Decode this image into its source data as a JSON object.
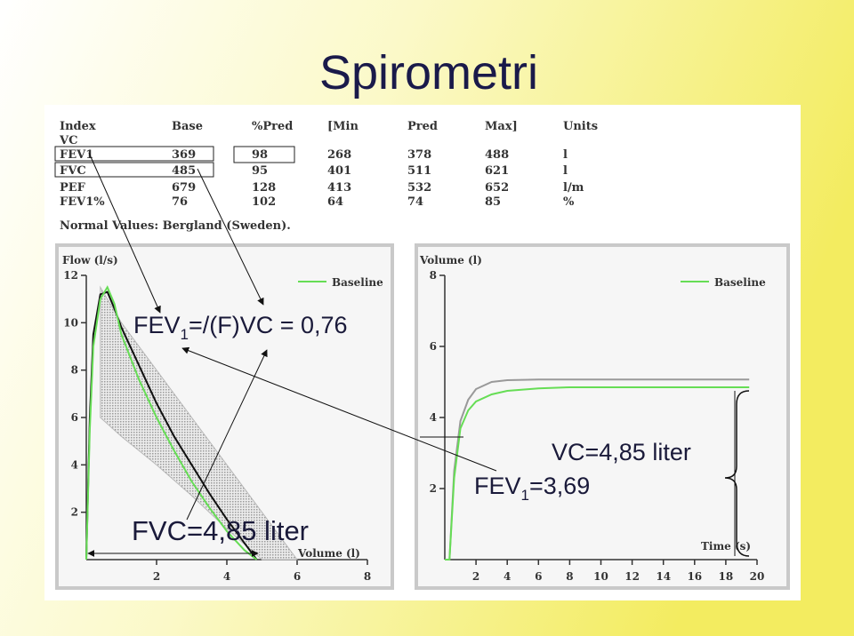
{
  "title": "Spirometri",
  "table": {
    "header": [
      "Index",
      "Base",
      "%Pred",
      "[Min",
      "Pred",
      "Max]",
      "Units"
    ],
    "rows": [
      [
        "VC"
      ],
      [
        "FEV1",
        "369",
        "98",
        "268",
        "378",
        "488",
        "l"
      ],
      [
        "FVC",
        "485",
        "95",
        "401",
        "511",
        "621",
        "l"
      ],
      [
        "PEF",
        "679",
        "128",
        "413",
        "532",
        "652",
        "l/m"
      ],
      [
        "FEV1%",
        "76",
        "102",
        "64",
        "74",
        "85",
        "%"
      ]
    ],
    "note": "Normal Values: Bergland (Sweden)."
  },
  "annotations": [
    {
      "main": "FEV",
      "sub": "1",
      "rest": "=/(F)VC = 0,76"
    },
    {
      "main": "FVC=4,85 liter"
    },
    {
      "main": "VC=4,85 liter"
    },
    {
      "main": "FEV",
      "sub": "1",
      "rest": "=3,69"
    }
  ],
  "chart_data": [
    {
      "type": "line",
      "y_label": "Flow (l/s)",
      "x_label": "Volume (l)",
      "x": [
        0,
        0.1,
        0.2,
        0.4,
        0.6,
        0.8,
        1,
        1.5,
        2,
        2.5,
        3,
        3.5,
        4,
        4.5,
        4.85
      ],
      "series": [
        {
          "color": "#111111",
          "values": [
            0,
            6,
            9.5,
            11.2,
            11.3,
            10.6,
            9.8,
            8.2,
            6.6,
            5.2,
            4,
            2.8,
            1.7,
            0.7,
            0
          ]
        },
        {
          "name": "Baseline",
          "color": "#66dd55",
          "values": [
            0,
            5.5,
            9,
            11,
            11.5,
            10.8,
            9.5,
            7.6,
            6,
            4.6,
            3.3,
            2.2,
            1.2,
            0.4,
            0
          ]
        }
      ],
      "band": {
        "color": "#b8b8b8",
        "x": [
          0.4,
          1,
          2,
          3,
          4,
          5,
          6
        ],
        "upper": [
          11.5,
          10,
          8,
          6,
          4,
          2,
          0
        ],
        "lower": [
          6,
          5.2,
          4,
          2.7,
          1.3,
          0,
          0
        ]
      },
      "xlim": [
        0,
        8
      ],
      "ylim": [
        0,
        12
      ],
      "xticks": [
        2,
        4,
        6,
        8
      ],
      "yticks": [
        2,
        4,
        6,
        8,
        10,
        12
      ],
      "legend": "upper right"
    },
    {
      "type": "line",
      "y_label": "Volume (l)",
      "x_label": "Time (s)",
      "x": [
        0,
        0.3,
        0.6,
        1,
        1.5,
        2,
        3,
        4,
        6,
        8,
        10,
        19.5
      ],
      "series": [
        {
          "color": "#999999",
          "values": [
            0,
            0,
            2.5,
            3.9,
            4.5,
            4.8,
            5,
            5.05,
            5.07,
            5.07,
            5.07,
            5.07
          ]
        },
        {
          "name": "Baseline",
          "color": "#66dd55",
          "values": [
            0,
            0,
            2.3,
            3.69,
            4.2,
            4.45,
            4.65,
            4.75,
            4.82,
            4.85,
            4.85,
            4.85
          ]
        }
      ],
      "xlim": [
        0,
        20
      ],
      "ylim": [
        0,
        8
      ],
      "xticks": [
        2,
        4,
        6,
        8,
        10,
        12,
        14,
        16,
        18,
        20
      ],
      "yticks": [
        2,
        4,
        6,
        8
      ],
      "legend": "upper right"
    }
  ]
}
